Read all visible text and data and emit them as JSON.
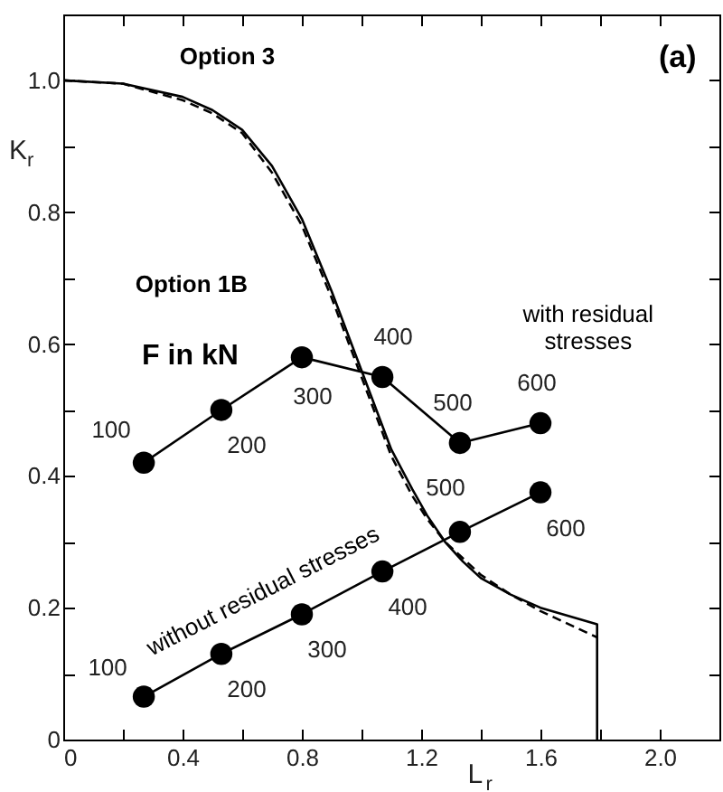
{
  "chart_data": {
    "type": "line",
    "xlabel": "L$_{r}$",
    "ylabel": "K$_{r}$",
    "xlim": [
      0,
      2.2
    ],
    "ylim": [
      0,
      1.1
    ],
    "xticks": [
      0,
      {
        "value": 0.2,
        "label": null
      },
      0.4,
      {
        "value": 0.6,
        "label": null
      },
      0.8,
      {
        "value": 1.0,
        "label": null
      },
      1.2,
      {
        "value": 1.4,
        "label": null
      },
      1.6,
      {
        "value": 1.8,
        "label": null
      },
      {
        "value": 2.0,
        "label": "2.0"
      },
      {
        "value": 2.2,
        "label": null
      }
    ],
    "yticks": [
      0,
      {
        "value": 0.1,
        "label": null
      },
      0.2,
      {
        "value": 0.3,
        "label": null
      },
      0.4,
      {
        "value": 0.5,
        "label": null
      },
      0.6,
      {
        "value": 0.7,
        "label": null
      },
      0.8,
      {
        "value": 0.9,
        "label": null
      },
      {
        "value": 1.0,
        "label": "1.0"
      }
    ],
    "grid": false,
    "series": [
      {
        "name": "Option 3",
        "color": "#000000",
        "line_style": "solid",
        "marker": "none",
        "x": [
          0,
          0.2,
          0.4,
          0.5,
          0.6,
          0.7,
          0.8,
          0.9,
          1.0,
          1.05,
          1.1,
          1.17,
          1.22,
          1.28,
          1.34,
          1.4,
          1.5,
          1.6,
          1.79,
          1.79
        ],
        "values": [
          1,
          0.995,
          0.975,
          0.955,
          0.925,
          0.87,
          0.79,
          0.68,
          0.56,
          0.5,
          0.44,
          0.38,
          0.34,
          0.3,
          0.27,
          0.245,
          0.22,
          0.2,
          0.175,
          0
        ]
      },
      {
        "name": "Option 1B",
        "color": "#000000",
        "line_style": "dashed",
        "marker": "none",
        "x": [
          0,
          0.2,
          0.4,
          0.5,
          0.6,
          0.7,
          0.8,
          0.9,
          1.0,
          1.05,
          1.1,
          1.17,
          1.22,
          1.28,
          1.34,
          1.4,
          1.5,
          1.6,
          1.79
        ],
        "values": [
          1,
          0.995,
          0.97,
          0.95,
          0.92,
          0.86,
          0.78,
          0.67,
          0.55,
          0.49,
          0.43,
          0.37,
          0.335,
          0.3,
          0.275,
          0.25,
          0.22,
          0.195,
          0.155
        ]
      },
      {
        "name": "with residual stresses",
        "color": "#000000",
        "line_style": "solid",
        "marker": "circle",
        "x": [
          0.27,
          0.53,
          0.8,
          1.07,
          1.33,
          1.6
        ],
        "values": [
          0.42,
          0.5,
          0.58,
          0.55,
          0.45,
          0.48
        ]
      },
      {
        "name": "without residual stresses",
        "color": "#000000",
        "line_style": "solid",
        "marker": "circle",
        "x": [
          0.27,
          0.53,
          0.8,
          1.07,
          1.33,
          1.6
        ],
        "values": [
          0.065,
          0.13,
          0.19,
          0.255,
          0.315,
          0.375
        ]
      }
    ],
    "annotations": [
      "(a)",
      "F in kN",
      {
        "text": "100",
        "x": 0.27,
        "y": 0.42
      },
      {
        "text": "200",
        "x": 0.53,
        "y": 0.5
      },
      {
        "text": "300",
        "x": 0.8,
        "y": 0.58
      },
      {
        "text": "400",
        "x": 1.07,
        "y": 0.55
      },
      {
        "text": "500",
        "x": 1.33,
        "y": 0.45
      },
      {
        "text": "600",
        "x": 1.6,
        "y": 0.48
      },
      {
        "text": "100",
        "x": 0.27,
        "y": 0.065
      },
      {
        "text": "200",
        "x": 0.53,
        "y": 0.13
      },
      {
        "text": "300",
        "x": 0.8,
        "y": 0.19
      },
      {
        "text": "400",
        "x": 1.07,
        "y": 0.255
      },
      {
        "text": "500",
        "x": 1.33,
        "y": 0.315
      },
      {
        "text": "600",
        "x": 1.6,
        "y": 0.375
      }
    ]
  }
}
